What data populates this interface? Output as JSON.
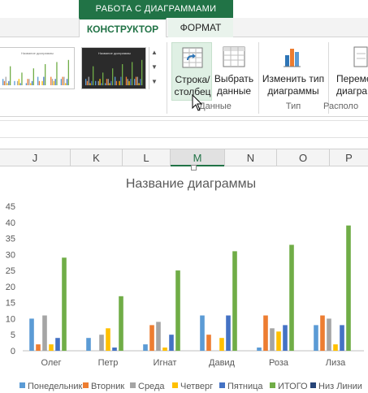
{
  "ribbon": {
    "context_header": "РАБОТА С ДИАГРАММАМИ",
    "tabs": [
      {
        "label": "КОНСТРУКТОР",
        "active": true
      },
      {
        "label": "ФОРМАТ",
        "active": false
      }
    ],
    "style_thumbs": [
      {
        "title": "Название диаграммы",
        "dark": false
      },
      {
        "title": "Название диаграммы",
        "dark": true
      }
    ],
    "buttons": {
      "switch_row_col": {
        "line1": "Строка/",
        "line2": "столбец",
        "icon": "switch-row-column-icon"
      },
      "select_data": {
        "line1": "Выбрать",
        "line2": "данные",
        "icon": "select-data-icon"
      },
      "change_type": {
        "line1": "Изменить тип",
        "line2": "диаграммы",
        "icon": "change-chart-type-icon"
      },
      "move": {
        "line1": "Переме",
        "line2": "диагра",
        "icon": "move-chart-icon"
      }
    },
    "groups": {
      "data": "Данные",
      "type": "Тип",
      "location": "Располо"
    }
  },
  "grid": {
    "columns": [
      "J",
      "K",
      "L",
      "M",
      "N",
      "O",
      "P"
    ],
    "active_column": "M"
  },
  "chart_data": {
    "type": "bar",
    "title": "Название диаграммы",
    "ylim": [
      0,
      45
    ],
    "yticks": [
      0,
      5,
      10,
      15,
      20,
      25,
      30,
      35,
      40,
      45
    ],
    "categories": [
      "Олег",
      "Петр",
      "Игнат",
      "Давид",
      "Роза",
      "Лиза"
    ],
    "series": [
      {
        "name": "Понедельник",
        "color": "#5b9bd5",
        "values": [
          10,
          4,
          2,
          11,
          1,
          8
        ]
      },
      {
        "name": "Вторник",
        "color": "#ed7d31",
        "values": [
          2,
          0,
          8,
          5,
          11,
          11
        ]
      },
      {
        "name": "Среда",
        "color": "#a5a5a5",
        "values": [
          11,
          5,
          9,
          0,
          7,
          10
        ]
      },
      {
        "name": "Четверг",
        "color": "#ffc000",
        "values": [
          2,
          7,
          1,
          4,
          6,
          2
        ]
      },
      {
        "name": "Пятница",
        "color": "#4472c4",
        "values": [
          4,
          1,
          5,
          11,
          8,
          8
        ]
      },
      {
        "name": "ИТОГО",
        "color": "#70ad47",
        "values": [
          29,
          17,
          25,
          31,
          33,
          39
        ]
      },
      {
        "name": "Низ Линии",
        "color": "#264478",
        "values": [
          0,
          0,
          0,
          0,
          0,
          0
        ]
      }
    ],
    "legend_position": "bottom",
    "grid": false
  }
}
